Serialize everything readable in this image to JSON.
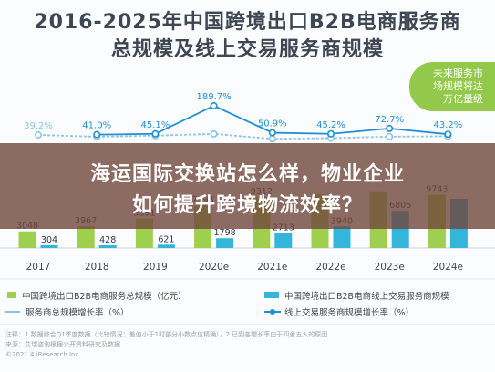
{
  "title_lines": [
    "2016-2025年中国跨境出口B2B电商服务商",
    "总规模及线上交易服务商规模"
  ],
  "callout_lines": [
    "未来服务市",
    "场规模将达",
    "十万亿量级"
  ],
  "banner_lines": [
    "海运国际交换站怎么样，物业企业",
    "如何提升跨境物流效率？"
  ],
  "legend": [
    {
      "label": "中国跨境出口B2B电商服务总规模（亿元）",
      "color": "#9fcf4e"
    },
    {
      "label": "中国跨境出口B2B电商线上交易服务商规模",
      "color": "#33b6d9"
    },
    {
      "label": "服务商总规模增长率（%）",
      "color": "#8cc4e6"
    },
    {
      "label": "线上交易服务商规模增长率（%）",
      "color": "#1f8fd6"
    }
  ],
  "note_lines": [
    "注释：1.数据综合Q1季度数据（比较情况：差值小于1时部分小数点位精确），2.已到各增长率由于四舍五入的原因",
    "来源：艾瑞咨询根据公开资料研究及数据",
    "©2021.4 iResearch Inc."
  ],
  "colors": {
    "total_bar": "#9fcf4e",
    "online_bar": "#33b6d9",
    "total_line": "#8cc4e6",
    "online_line": "#1f8fd6"
  },
  "chart_data": {
    "type": "bar",
    "categories": [
      "2017",
      "2018",
      "2019",
      "2020e",
      "2021e",
      "2022e",
      "2023e",
      "2024e"
    ],
    "series": [
      {
        "name": "中国跨境出口B2B电商服务总规模（亿元）",
        "type": "bar",
        "values": [
          3048,
          3967,
          5391,
          7793,
          9312,
          9800,
          10200,
          9743
        ],
        "labels": [
          "3048",
          "3967",
          "5391",
          "7793",
          "9312",
          "",
          "",
          "9743"
        ]
      },
      {
        "name": "中国跨境出口B2B电商线上交易服务商规模",
        "type": "bar",
        "values": [
          304,
          428,
          621,
          1798,
          2713,
          3940,
          6805,
          9000
        ],
        "labels": [
          "304",
          "428",
          "621",
          "1798",
          "2713",
          "3940",
          "6805",
          ""
        ]
      },
      {
        "name": "服务商总规模增长率（%）",
        "type": "line",
        "values": [
          39.2,
          30.2,
          35.9,
          44.5,
          19.5,
          23.1,
          30.8,
          32.7
        ],
        "labels": [
          "39.2%",
          "",
          "",
          "",
          "",
          "",
          "",
          ""
        ]
      },
      {
        "name": "线上交易服务商规模增长率（%）",
        "type": "line",
        "values": [
          null,
          41.0,
          45.1,
          189.7,
          50.9,
          45.2,
          72.7,
          43.2
        ],
        "labels": [
          "",
          "41.0%",
          "45.1%",
          "189.7%",
          "50.9%",
          "45.2%",
          "72.7%",
          "43.2%"
        ]
      }
    ]
  }
}
